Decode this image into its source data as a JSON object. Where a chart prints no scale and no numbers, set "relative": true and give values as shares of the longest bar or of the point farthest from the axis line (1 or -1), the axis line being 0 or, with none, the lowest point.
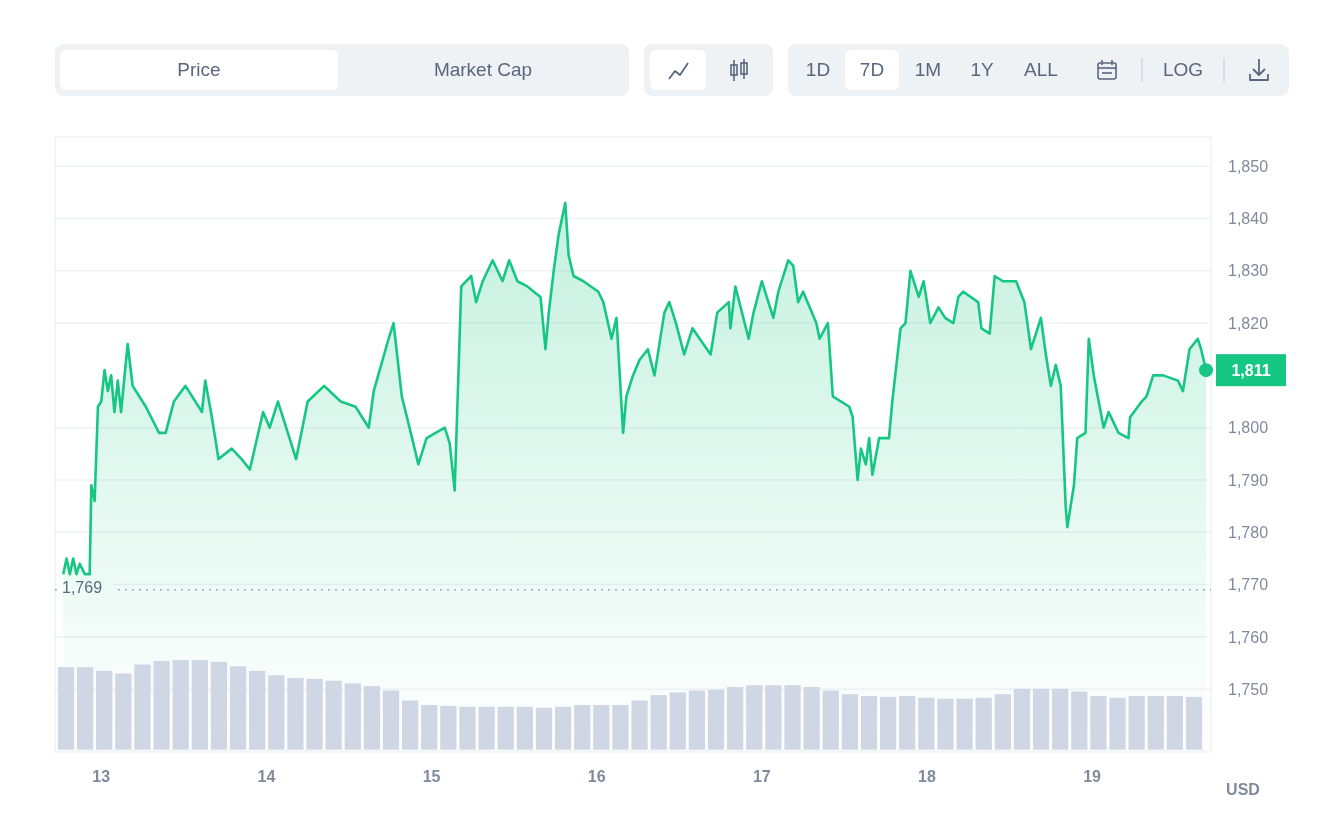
{
  "chart_data": [
    {
      "type": "area",
      "ylabel": "USD",
      "xlim": [
        12.72,
        19.72
      ],
      "xticks": [
        13,
        14,
        15,
        16,
        17,
        18,
        19
      ],
      "ylim": [
        1738,
        1855
      ],
      "yticks": [
        {
          "value": 1750,
          "label": "1,750"
        },
        {
          "value": 1760,
          "label": "1,760"
        },
        {
          "value": 1770,
          "label": "1,770"
        },
        {
          "value": 1780,
          "label": "1,780"
        },
        {
          "value": 1790,
          "label": "1,790"
        },
        {
          "value": 1800,
          "label": "1,800"
        },
        {
          "value": 1820,
          "label": "1,820"
        },
        {
          "value": 1830,
          "label": "1,830"
        },
        {
          "value": 1840,
          "label": "1,840"
        },
        {
          "value": 1850,
          "label": "1,850"
        }
      ],
      "grid": "y",
      "series": [
        {
          "color": "#16c784",
          "x": [
            12.77,
            12.79,
            12.81,
            12.83,
            12.85,
            12.87,
            12.9,
            12.93,
            12.94,
            12.96,
            12.98,
            13.0,
            13.02,
            13.04,
            13.06,
            13.08,
            13.1,
            13.12,
            13.16,
            13.19,
            13.23,
            13.27,
            13.35,
            13.39,
            13.44,
            13.51,
            13.61,
            13.63,
            13.67,
            13.71,
            13.79,
            13.85,
            13.9,
            13.98,
            14.02,
            14.07,
            14.12,
            14.18,
            14.25,
            14.35,
            14.45,
            14.54,
            14.62,
            14.65,
            14.74,
            14.77,
            14.82,
            14.89,
            14.92,
            14.97,
            15.08,
            15.11,
            15.14,
            15.18,
            15.24,
            15.27,
            15.31,
            15.37,
            15.43,
            15.47,
            15.52,
            15.58,
            15.66,
            15.69,
            15.71,
            15.74,
            15.77,
            15.81,
            15.83,
            15.86,
            15.92,
            16.01,
            16.04,
            16.09,
            16.12,
            16.16,
            16.18,
            16.22,
            16.26,
            16.31,
            16.35,
            16.41,
            16.44,
            16.48,
            16.53,
            16.58,
            16.69,
            16.73,
            16.8,
            16.81,
            16.84,
            16.92,
            16.95,
            17.0,
            17.07,
            17.1,
            17.16,
            17.19,
            17.22,
            17.25,
            17.33,
            17.35,
            17.4,
            17.43,
            17.53,
            17.55,
            17.58,
            17.6,
            17.63,
            17.65,
            17.67,
            17.71,
            17.77,
            17.79,
            17.84,
            17.87,
            17.9,
            17.95,
            17.98,
            18.01,
            18.02,
            18.07,
            18.11,
            18.16,
            18.19,
            18.22,
            18.31,
            18.33,
            18.38,
            18.41,
            18.46,
            18.54,
            18.59,
            18.63,
            18.66,
            18.69,
            18.72,
            18.75,
            18.78,
            18.81,
            18.84,
            18.85,
            18.89,
            18.91,
            18.96,
            18.98,
            19.01,
            19.07,
            19.1,
            19.16,
            19.22,
            19.23,
            19.3,
            19.33,
            19.37,
            19.43,
            19.52,
            19.55,
            19.59,
            19.64,
            19.66,
            19.69
          ],
          "values": [
            1772,
            1775,
            1772,
            1775,
            1772,
            1774,
            1772,
            1772,
            1789,
            1786,
            1804,
            1805,
            1811,
            1807,
            1810,
            1803,
            1809,
            1803,
            1816,
            1808,
            1806,
            1804,
            1799,
            1799,
            1805,
            1808,
            1803,
            1809,
            1802,
            1794,
            1796,
            1794,
            1792,
            1803,
            1800,
            1805,
            1800,
            1794,
            1805,
            1808,
            1805,
            1804,
            1800,
            1807,
            1817,
            1820,
            1806,
            1797,
            1793,
            1798,
            1800,
            1797,
            1788,
            1827,
            1829,
            1824,
            1828,
            1832,
            1828,
            1832,
            1828,
            1827,
            1825,
            1815,
            1822,
            1830,
            1837,
            1843,
            1833,
            1829,
            1828,
            1826,
            1824,
            1817,
            1821,
            1799,
            1806,
            1810,
            1813,
            1815,
            1810,
            1822,
            1824,
            1820,
            1814,
            1819,
            1814,
            1822,
            1824,
            1819,
            1827,
            1817,
            1822,
            1828,
            1821,
            1826,
            1832,
            1831,
            1824,
            1826,
            1820,
            1817,
            1820,
            1806,
            1804,
            1802,
            1790,
            1796,
            1793,
            1798,
            1791,
            1798,
            1798,
            1805,
            1819,
            1820,
            1830,
            1825,
            1828,
            1822,
            1820,
            1823,
            1821,
            1820,
            1825,
            1826,
            1824,
            1819,
            1818,
            1829,
            1828,
            1828,
            1824,
            1815,
            1818,
            1821,
            1814,
            1808,
            1812,
            1808,
            1785,
            1781,
            1789,
            1798,
            1799,
            1817,
            1810,
            1800,
            1803,
            1799,
            1798,
            1802,
            1805,
            1806,
            1810,
            1810,
            1809,
            1807,
            1815,
            1817,
            1815,
            1811
          ]
        }
      ],
      "ref_lines": [
        {
          "axis": "y",
          "value": 1769,
          "label": "1,769",
          "line_style": "dotted",
          "color": "#a1a7bb"
        }
      ],
      "annotations": [
        "Price",
        "Market Cap",
        "1D",
        "7D",
        "1M",
        "1Y",
        "ALL",
        "LOG",
        {
          "text": "1,811",
          "x": 19.69,
          "y": 1811
        }
      ]
    },
    {
      "type": "bar",
      "relative": true,
      "categories": [
        null,
        null,
        null,
        null,
        null,
        null,
        null,
        null,
        null,
        null,
        null,
        null,
        null,
        null,
        null,
        null,
        null,
        null,
        null,
        null,
        null,
        null,
        null,
        null,
        null,
        null,
        null,
        null,
        null,
        null,
        null,
        null,
        null,
        null,
        null,
        null,
        null,
        null,
        null,
        null,
        null,
        null,
        null,
        null,
        null,
        null,
        null,
        null,
        null,
        null,
        null,
        null,
        null,
        null,
        null,
        null,
        null,
        null,
        null,
        null
      ],
      "series": [
        {
          "color": "#cfd6e4",
          "values": [
            0.92,
            0.92,
            0.88,
            0.85,
            0.95,
            0.99,
            1.0,
            1.0,
            0.98,
            0.93,
            0.88,
            0.83,
            0.8,
            0.79,
            0.77,
            0.74,
            0.71,
            0.66,
            0.55,
            0.5,
            0.49,
            0.48,
            0.48,
            0.48,
            0.48,
            0.47,
            0.48,
            0.5,
            0.5,
            0.5,
            0.55,
            0.61,
            0.64,
            0.66,
            0.67,
            0.7,
            0.72,
            0.72,
            0.72,
            0.7,
            0.66,
            0.62,
            0.6,
            0.59,
            0.6,
            0.58,
            0.57,
            0.57,
            0.58,
            0.62,
            0.68,
            0.68,
            0.68,
            0.65,
            0.6,
            0.58,
            0.6,
            0.6,
            0.6,
            0.59
          ]
        }
      ]
    }
  ]
}
